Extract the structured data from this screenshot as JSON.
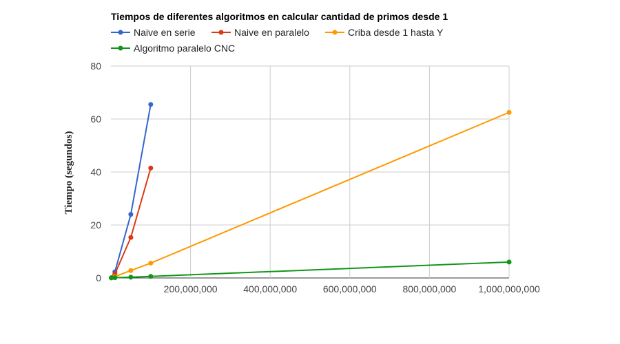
{
  "chart_data": {
    "type": "line",
    "title": "Tiempos de diferentes algoritmos en calcular cantidad de primos desde 1",
    "xlabel": "",
    "ylabel": "Tiempo (segundos)",
    "xlim": [
      0,
      1000000000
    ],
    "ylim": [
      0,
      80
    ],
    "x_ticks": [
      200000000,
      400000000,
      600000000,
      800000000,
      1000000000
    ],
    "x_tick_labels": [
      "200,000,000",
      "400,000,000",
      "600,000,000",
      "800,000,000",
      "1,000,000,000"
    ],
    "y_ticks": [
      0,
      20,
      40,
      60,
      80
    ],
    "y_tick_labels": [
      "0",
      "20",
      "40",
      "60",
      "80"
    ],
    "grid": true,
    "legend_position": "top",
    "series": [
      {
        "name": "Naive en serie",
        "color": "#3366cc",
        "x": [
          1000000,
          10000000,
          50000000,
          100000000
        ],
        "y": [
          0.05,
          2.3,
          24,
          65.5
        ]
      },
      {
        "name": "Naive en paralelo",
        "color": "#dc3912",
        "x": [
          1000000,
          10000000,
          50000000,
          100000000
        ],
        "y": [
          0.05,
          1.5,
          15.3,
          41.5
        ]
      },
      {
        "name": "Criba desde 1 hasta Y",
        "color": "#ff9900",
        "x": [
          1000000,
          10000000,
          50000000,
          100000000,
          1000000000
        ],
        "y": [
          0.05,
          0.5,
          2.8,
          5.6,
          62.5
        ]
      },
      {
        "name": "Algoritmo paralelo CNC",
        "color": "#109618",
        "x": [
          1000000,
          10000000,
          50000000,
          100000000,
          1000000000
        ],
        "y": [
          0.05,
          0.1,
          0.3,
          0.6,
          6
        ]
      }
    ]
  }
}
